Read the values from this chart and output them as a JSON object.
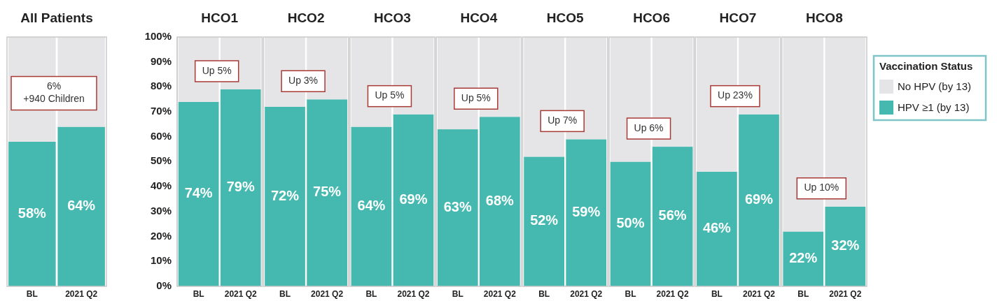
{
  "chart_data": [
    {
      "type": "bar",
      "stacked": true,
      "title": "All Patients",
      "categories": [
        "BL",
        "2021 Q2"
      ],
      "series": [
        {
          "color": "#45b8af",
          "values": [
            58,
            64
          ],
          "value_labels": [
            "58%",
            "64%"
          ]
        },
        {
          "color": "#e5e5e7",
          "values": [
            42,
            36
          ]
        }
      ],
      "ylim": [
        0,
        100
      ],
      "tick_labels": "x",
      "annotations": [
        "6%\n+940 Children"
      ]
    },
    {
      "type": "bar",
      "stacked": true,
      "title": "HCO1",
      "categories": [
        "BL",
        "2021 Q2"
      ],
      "series": [
        {
          "color": "#45b8af",
          "values": [
            74,
            79
          ],
          "value_labels": [
            "74%",
            "79%"
          ]
        },
        {
          "color": "#e5e5e7",
          "values": [
            26,
            21
          ]
        }
      ],
      "ylim": [
        0,
        100
      ],
      "yticks": [
        {
          "value": 0,
          "label": "0%"
        },
        {
          "value": 10,
          "label": "10%"
        },
        {
          "value": 20,
          "label": "20%"
        },
        {
          "value": 30,
          "label": "30%"
        },
        {
          "value": 40,
          "label": "40%"
        },
        {
          "value": 50,
          "label": "50%"
        },
        {
          "value": 60,
          "label": "60%"
        },
        {
          "value": 70,
          "label": "70%"
        },
        {
          "value": 80,
          "label": "80%"
        },
        {
          "value": 90,
          "label": "90%"
        },
        {
          "value": 100,
          "label": "100%"
        }
      ],
      "annotations": [
        "Up 5%"
      ]
    },
    {
      "type": "bar",
      "stacked": true,
      "title": "HCO2",
      "categories": [
        "BL",
        "2021 Q2"
      ],
      "series": [
        {
          "color": "#45b8af",
          "values": [
            72,
            75
          ],
          "value_labels": [
            "72%",
            "75%"
          ]
        },
        {
          "color": "#e5e5e7",
          "values": [
            28,
            25
          ]
        }
      ],
      "ylim": [
        0,
        100
      ],
      "tick_labels": "x",
      "annotations": [
        "Up 3%"
      ]
    },
    {
      "type": "bar",
      "stacked": true,
      "title": "HCO3",
      "categories": [
        "BL",
        "2021 Q2"
      ],
      "series": [
        {
          "color": "#45b8af",
          "values": [
            64,
            69
          ],
          "value_labels": [
            "64%",
            "69%"
          ]
        },
        {
          "color": "#e5e5e7",
          "values": [
            36,
            31
          ]
        }
      ],
      "ylim": [
        0,
        100
      ],
      "tick_labels": "x",
      "annotations": [
        "Up 5%"
      ]
    },
    {
      "type": "bar",
      "stacked": true,
      "title": "HCO4",
      "categories": [
        "BL",
        "2021 Q2"
      ],
      "series": [
        {
          "color": "#45b8af",
          "values": [
            63,
            68
          ],
          "value_labels": [
            "63%",
            "68%"
          ]
        },
        {
          "color": "#e5e5e7",
          "values": [
            37,
            32
          ]
        }
      ],
      "ylim": [
        0,
        100
      ],
      "tick_labels": "x",
      "annotations": [
        "Up 5%"
      ]
    },
    {
      "type": "bar",
      "stacked": true,
      "title": "HCO5",
      "categories": [
        "BL",
        "2021 Q2"
      ],
      "series": [
        {
          "color": "#45b8af",
          "values": [
            52,
            59
          ],
          "value_labels": [
            "52%",
            "59%"
          ]
        },
        {
          "color": "#e5e5e7",
          "values": [
            48,
            41
          ]
        }
      ],
      "ylim": [
        0,
        100
      ],
      "tick_labels": "x",
      "annotations": [
        "Up 7%"
      ]
    },
    {
      "type": "bar",
      "stacked": true,
      "title": "HCO6",
      "categories": [
        "BL",
        "2021 Q2"
      ],
      "series": [
        {
          "color": "#45b8af",
          "values": [
            50,
            56
          ],
          "value_labels": [
            "50%",
            "56%"
          ]
        },
        {
          "color": "#e5e5e7",
          "values": [
            50,
            44
          ]
        }
      ],
      "ylim": [
        0,
        100
      ],
      "tick_labels": "x",
      "annotations": [
        "Up 6%"
      ]
    },
    {
      "type": "bar",
      "stacked": true,
      "title": "HCO7",
      "categories": [
        "BL",
        "2021 Q2"
      ],
      "series": [
        {
          "color": "#45b8af",
          "values": [
            46,
            69
          ],
          "value_labels": [
            "46%",
            "69%"
          ]
        },
        {
          "color": "#e5e5e7",
          "values": [
            54,
            31
          ]
        }
      ],
      "ylim": [
        0,
        100
      ],
      "tick_labels": "x",
      "annotations": [
        "Up 23%"
      ]
    },
    {
      "type": "bar",
      "stacked": true,
      "title": "HCO8",
      "categories": [
        "BL",
        "2021 Q2"
      ],
      "series": [
        {
          "name": "HPV ≥1 (by 13)",
          "color": "#45b8af",
          "values": [
            22,
            32
          ],
          "value_labels": [
            "22%",
            "32%"
          ]
        },
        {
          "name": "No HPV (by 13)",
          "color": "#e5e5e7",
          "values": [
            78,
            68
          ]
        }
      ],
      "ylim": [
        0,
        100
      ],
      "tick_labels": "x",
      "legend": "right",
      "legend_title": "Vaccination Status",
      "annotations": [
        "Up 10%"
      ]
    }
  ]
}
